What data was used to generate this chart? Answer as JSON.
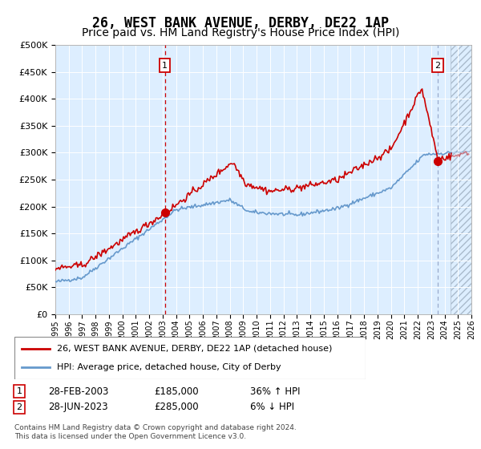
{
  "title": "26, WEST BANK AVENUE, DERBY, DE22 1AP",
  "subtitle": "Price paid vs. HM Land Registry's House Price Index (HPI)",
  "title_fontsize": 12,
  "subtitle_fontsize": 10,
  "legend_line1": "26, WEST BANK AVENUE, DERBY, DE22 1AP (detached house)",
  "legend_line2": "HPI: Average price, detached house, City of Derby",
  "annotation1_date": "28-FEB-2003",
  "annotation1_price": "£185,000",
  "annotation1_change": "36% ↑ HPI",
  "annotation2_date": "28-JUN-2023",
  "annotation2_price": "£285,000",
  "annotation2_change": "6% ↓ HPI",
  "footnote": "Contains HM Land Registry data © Crown copyright and database right 2024.\nThis data is licensed under the Open Government Licence v3.0.",
  "red_color": "#cc0000",
  "blue_color": "#6699cc",
  "background_color": "#ddeeff",
  "marker1_year": 2003.16,
  "marker2_year": 2023.49,
  "marker1_price": 185000,
  "marker2_price": 285000,
  "xmin": 1995,
  "xmax": 2026,
  "ymin": 0,
  "ymax": 500000
}
